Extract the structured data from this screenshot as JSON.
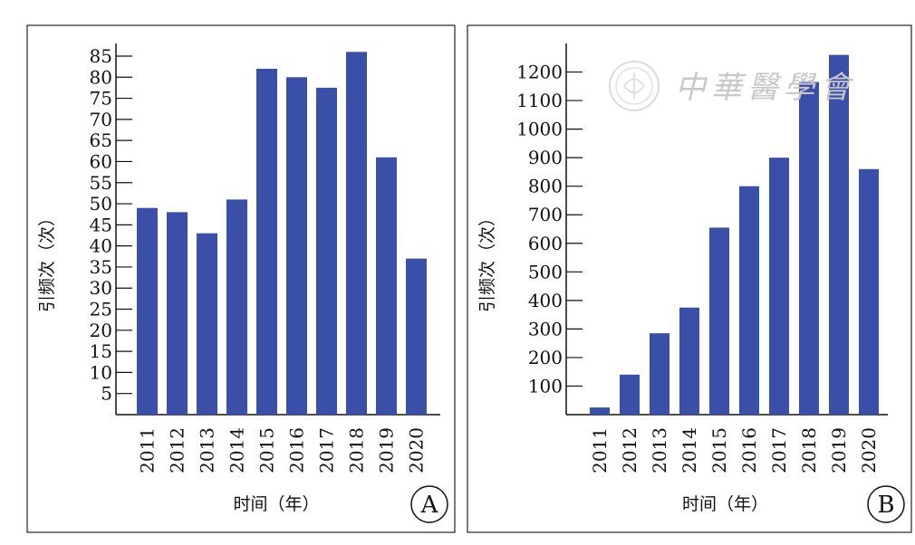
{
  "chart_data": [
    {
      "type": "bar",
      "panel_marker": "A",
      "categories": [
        "2011",
        "2012",
        "2013",
        "2014",
        "2015",
        "2016",
        "2017",
        "2018",
        "2019",
        "2020"
      ],
      "values": [
        49,
        48,
        43,
        51,
        82,
        80,
        77.5,
        86,
        61,
        37
      ],
      "xlabel": "时间（年）",
      "ylabel": "引频次（次）",
      "ylim": [
        0,
        88
      ],
      "yticks": [
        5,
        10,
        15,
        20,
        25,
        30,
        35,
        40,
        45,
        50,
        55,
        60,
        65,
        70,
        75,
        80,
        85
      ],
      "bar_color": "#3a4fa8",
      "grid": false
    },
    {
      "type": "bar",
      "panel_marker": "B",
      "categories": [
        "2011",
        "2012",
        "2013",
        "2014",
        "2015",
        "2016",
        "2017",
        "2018",
        "2019",
        "2020"
      ],
      "values": [
        25,
        140,
        285,
        375,
        655,
        800,
        900,
        1165,
        1260,
        860
      ],
      "xlabel": "时间（年）",
      "ylabel": "引频次（次）",
      "ylim": [
        0,
        1300
      ],
      "yticks": [
        100,
        200,
        300,
        400,
        500,
        600,
        700,
        800,
        900,
        1000,
        1100,
        1200
      ],
      "bar_color": "#3a4fa8",
      "grid": false
    }
  ],
  "watermark": {
    "text": "中華醫學會",
    "seal_icon": "medical-association-seal-icon"
  }
}
